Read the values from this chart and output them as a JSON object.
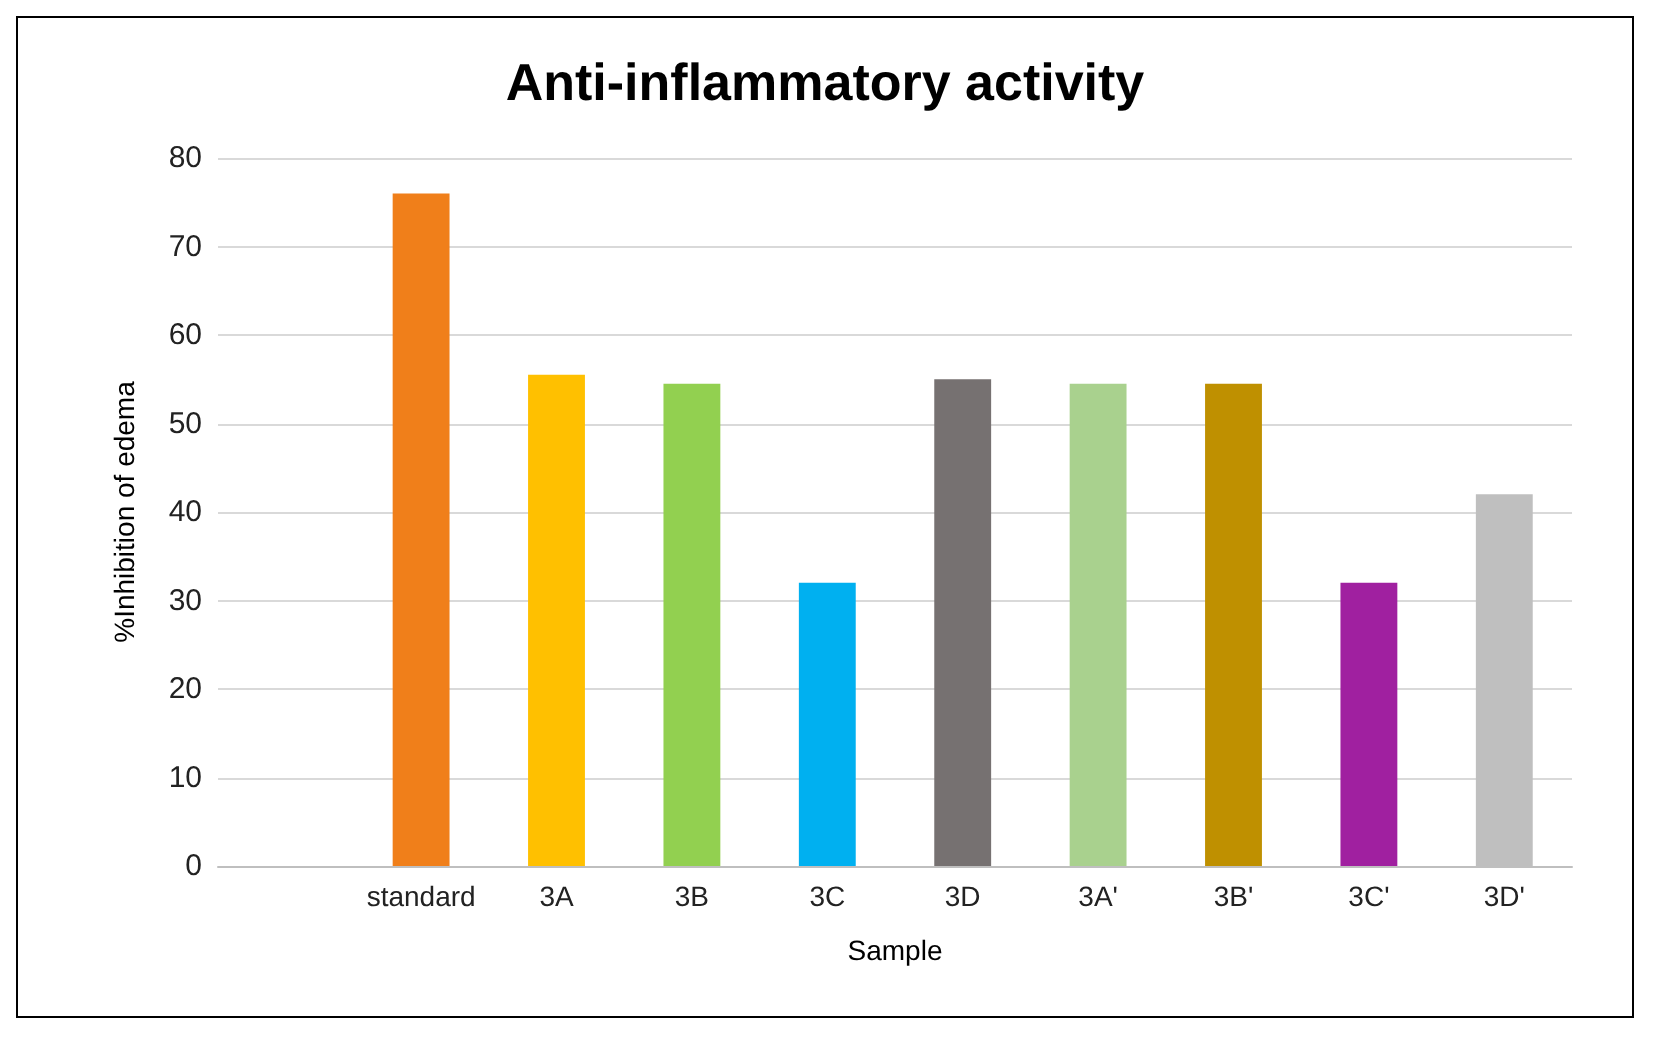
{
  "chart_data": {
    "type": "bar",
    "title": "Anti-inflammatory activity",
    "xlabel": "Sample",
    "ylabel": "%Inhibition of edema",
    "categories": [
      null,
      "standard",
      "3A",
      "3B",
      "3C",
      "3D",
      "3A'",
      "3B'",
      "3C'",
      "3D'"
    ],
    "values": [
      null,
      76,
      55.5,
      54.5,
      32,
      55,
      54.5,
      54.5,
      32,
      42
    ],
    "colors": [
      "#808080",
      "#f07f1a",
      "#ffc000",
      "#92d050",
      "#00b0f0",
      "#767171",
      "#a9d18e",
      "#bf9000",
      "#a020a0",
      "#bfbfbf"
    ],
    "ylim": [
      0,
      80
    ],
    "yticks": [
      0,
      10,
      20,
      30,
      40,
      50,
      60,
      70,
      80
    ],
    "grid": "y"
  }
}
